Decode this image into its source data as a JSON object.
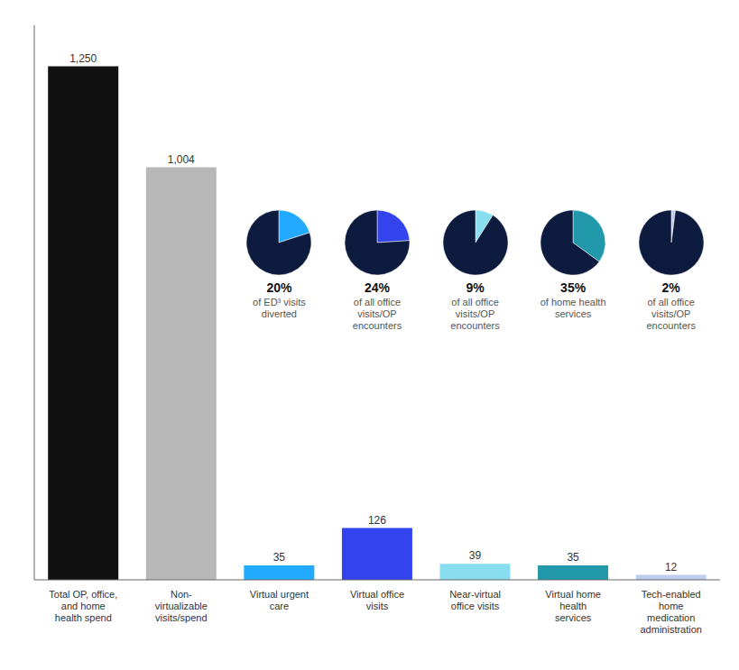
{
  "chart_data": [
    {
      "type": "bar",
      "categories": [
        "Total OP, office,\nand home\nhealth spend",
        "Non-\nvirtualizable\nvisits/spend",
        "Virtual urgent\ncare",
        "Virtual office\nvisits",
        "Near-virtual\noffice visits",
        "Virtual home\nhealth\nservices",
        "Tech-enabled\nhome\nmedication\nadministration"
      ],
      "values": [
        1250,
        1004,
        35,
        126,
        39,
        35,
        12
      ],
      "value_labels": [
        "1,250",
        "1,004",
        "35",
        "126",
        "39",
        "35",
        "12"
      ],
      "colors": [
        "#111111",
        "#b8b8b8",
        "#22aaff",
        "#3344ee",
        "#88ddee",
        "#2299aa",
        "#c0ccee"
      ],
      "ylim": [
        0,
        1350
      ],
      "data_labels": true,
      "grid": false,
      "tick_labels": "x"
    },
    {
      "type": "pie",
      "values": [
        20,
        80
      ],
      "colors": [
        "#22aaff",
        "#0d1b3e"
      ],
      "value_labels": [
        "20%",
        null
      ],
      "annotations": [
        "of ED³ visits\ndiverted"
      ]
    },
    {
      "type": "pie",
      "values": [
        24,
        76
      ],
      "colors": [
        "#3344ee",
        "#0d1b3e"
      ],
      "value_labels": [
        "24%",
        null
      ],
      "annotations": [
        "of all office\nvisits/OP\nencounters"
      ]
    },
    {
      "type": "pie",
      "values": [
        9,
        91
      ],
      "colors": [
        "#88ddee",
        "#0d1b3e"
      ],
      "value_labels": [
        "9%",
        null
      ],
      "annotations": [
        "of all office\nvisits/OP\nencounters"
      ]
    },
    {
      "type": "pie",
      "values": [
        35,
        65
      ],
      "colors": [
        "#2299aa",
        "#0d1b3e"
      ],
      "value_labels": [
        "35%",
        null
      ],
      "annotations": [
        "of home health\nservices"
      ]
    },
    {
      "type": "pie",
      "values": [
        2,
        98
      ],
      "colors": [
        "#c0ccee",
        "#0d1b3e"
      ],
      "value_labels": [
        "2%",
        null
      ],
      "annotations": [
        "of all office\nvisits/OP\nencounters"
      ]
    }
  ]
}
